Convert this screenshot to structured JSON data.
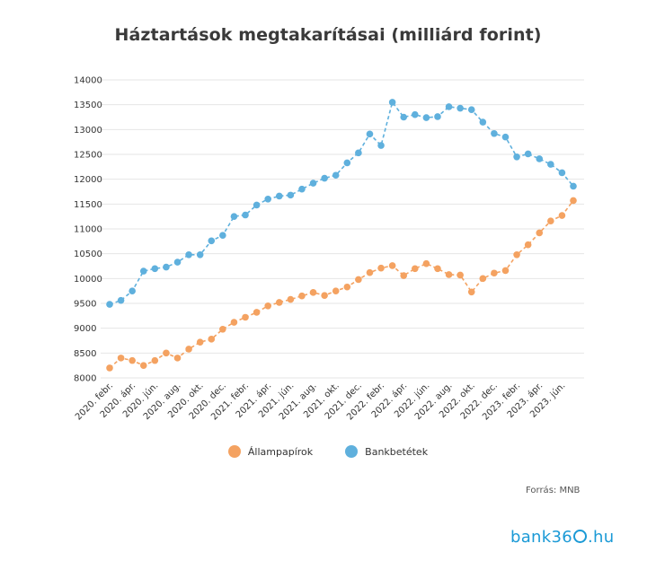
{
  "chart_data": {
    "type": "line",
    "title": "Háztartások megtakarításai (milliárd forint)",
    "xlabel": "",
    "ylabel": "",
    "ylim": [
      8000,
      14000
    ],
    "yticks": [
      8000,
      8500,
      9000,
      9500,
      10000,
      10500,
      11000,
      11500,
      12000,
      12500,
      13000,
      13500,
      14000
    ],
    "x_tick_labels": [
      "2020. febr.",
      "2020. ápr.",
      "2020. jún.",
      "2020. aug.",
      "2020. okt.",
      "2020. dec.",
      "2021. febr.",
      "2021. ápr.",
      "2021. jún.",
      "2021. aug.",
      "2021. okt.",
      "2021. dec.",
      "2022. febr.",
      "2022. ápr.",
      "2022. jún.",
      "2022. aug.",
      "2022. okt.",
      "2022. dec.",
      "2023. febr.",
      "2023. ápr.",
      "2023. jún."
    ],
    "grid": true,
    "legend_position": "bottom",
    "series": [
      {
        "name": "Állampapírok",
        "color": "#f4a261",
        "values": [
          8200,
          8400,
          8350,
          8250,
          8350,
          8500,
          8400,
          8580,
          8720,
          8780,
          8980,
          9120,
          9220,
          9320,
          9450,
          9520,
          9580,
          9650,
          9720,
          9660,
          9750,
          9830,
          9980,
          10120,
          10210,
          10260,
          10060,
          10200,
          10300,
          10200,
          10080,
          10070,
          9730,
          10000,
          10110,
          10160,
          10480,
          10680,
          10920,
          11160,
          11270,
          11570
        ]
      },
      {
        "name": "Bankbetétek",
        "color": "#5fb0dd",
        "values": [
          9480,
          9560,
          9750,
          10150,
          10200,
          10230,
          10330,
          10480,
          10480,
          10760,
          10870,
          11250,
          11280,
          11480,
          11600,
          11660,
          11680,
          11800,
          11920,
          12020,
          12080,
          12330,
          12530,
          12910,
          12680,
          13550,
          13250,
          13300,
          13240,
          13260,
          13460,
          13430,
          13400,
          13150,
          12920,
          12850,
          12450,
          12510,
          12410,
          12300,
          12130,
          11860
        ]
      }
    ]
  },
  "source_label": "Forrás: MNB",
  "logo": {
    "left": "bank36",
    "right": ".hu"
  }
}
